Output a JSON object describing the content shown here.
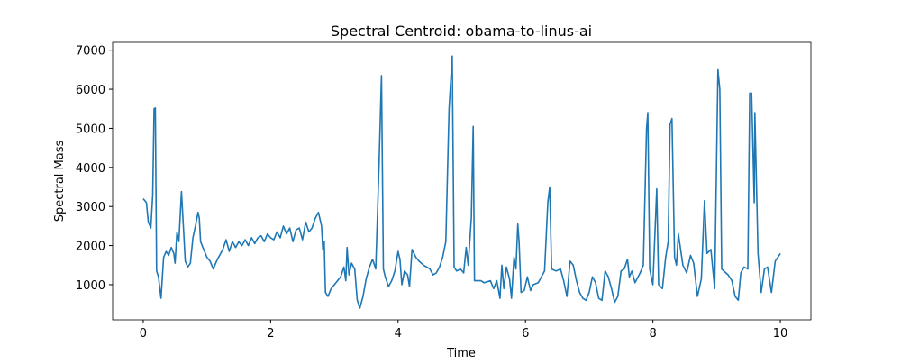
{
  "chart_data": {
    "type": "line",
    "title": "Spectral Centroid: obama-to-linus-ai",
    "xlabel": "Time",
    "ylabel": "Spectral Mass",
    "color": "#1f77b4",
    "xlim": [
      -0.48,
      10.48
    ],
    "ylim": [
      100,
      7200
    ],
    "xticks": [
      0,
      2,
      4,
      6,
      8,
      10
    ],
    "yticks": [
      1000,
      2000,
      3000,
      4000,
      5000,
      6000,
      7000
    ],
    "x": [
      0,
      0.05,
      0.08,
      0.12,
      0.15,
      0.17,
      0.19,
      0.21,
      0.24,
      0.28,
      0.32,
      0.36,
      0.4,
      0.44,
      0.48,
      0.5,
      0.53,
      0.56,
      0.6,
      0.63,
      0.66,
      0.7,
      0.74,
      0.78,
      0.82,
      0.86,
      0.88,
      0.9,
      0.95,
      1.0,
      1.05,
      1.1,
      1.15,
      1.2,
      1.25,
      1.3,
      1.35,
      1.4,
      1.45,
      1.5,
      1.55,
      1.6,
      1.65,
      1.7,
      1.75,
      1.8,
      1.85,
      1.9,
      1.95,
      2.0,
      2.05,
      2.1,
      2.15,
      2.2,
      2.25,
      2.3,
      2.35,
      2.4,
      2.45,
      2.5,
      2.55,
      2.6,
      2.65,
      2.7,
      2.75,
      2.8,
      2.82,
      2.84,
      2.86,
      2.9,
      2.95,
      3.0,
      3.05,
      3.1,
      3.15,
      3.18,
      3.2,
      3.23,
      3.27,
      3.32,
      3.36,
      3.4,
      3.45,
      3.5,
      3.55,
      3.6,
      3.65,
      3.7,
      3.74,
      3.77,
      3.8,
      3.85,
      3.9,
      3.95,
      4.0,
      4.03,
      4.06,
      4.1,
      4.15,
      4.18,
      4.22,
      4.28,
      4.33,
      4.4,
      4.5,
      4.55,
      4.6,
      4.65,
      4.7,
      4.75,
      4.8,
      4.85,
      4.88,
      4.92,
      4.98,
      5.03,
      5.07,
      5.1,
      5.15,
      5.18,
      5.2,
      5.3,
      5.35,
      5.45,
      5.5,
      5.55,
      5.6,
      5.63,
      5.66,
      5.7,
      5.75,
      5.78,
      5.82,
      5.85,
      5.88,
      5.9,
      5.93,
      5.98,
      6.03,
      6.08,
      6.12,
      6.2,
      6.25,
      6.3,
      6.35,
      6.38,
      6.41,
      6.48,
      6.55,
      6.6,
      6.65,
      6.7,
      6.75,
      6.8,
      6.85,
      6.9,
      6.95,
      7.0,
      7.05,
      7.1,
      7.15,
      7.2,
      7.25,
      7.3,
      7.35,
      7.4,
      7.45,
      7.5,
      7.55,
      7.6,
      7.63,
      7.67,
      7.72,
      7.8,
      7.85,
      7.9,
      7.92,
      7.95,
      8.0,
      8.06,
      8.09,
      8.15,
      8.2,
      8.24,
      8.27,
      8.3,
      8.34,
      8.37,
      8.4,
      8.47,
      8.53,
      8.59,
      8.64,
      8.7,
      8.76,
      8.81,
      8.85,
      8.91,
      8.97,
      9.02,
      9.05,
      9.08,
      9.18,
      9.24,
      9.29,
      9.34,
      9.38,
      9.43,
      9.49,
      9.52,
      9.55,
      9.59,
      9.6,
      9.65,
      9.7,
      9.75,
      9.8,
      9.86,
      9.92,
      10
    ],
    "values": [
      3200,
      3100,
      2600,
      2450,
      3300,
      5500,
      5520,
      1350,
      1200,
      650,
      1700,
      1850,
      1750,
      1950,
      1800,
      1550,
      2350,
      2100,
      3380,
      2500,
      1600,
      1450,
      1550,
      2200,
      2500,
      2850,
      2700,
      2100,
      1900,
      1700,
      1600,
      1400,
      1600,
      1750,
      1900,
      2150,
      1850,
      2100,
      1950,
      2100,
      2000,
      2150,
      2000,
      2200,
      2050,
      2200,
      2250,
      2100,
      2300,
      2200,
      2150,
      2350,
      2200,
      2500,
      2300,
      2450,
      2100,
      2400,
      2450,
      2150,
      2600,
      2350,
      2450,
      2700,
      2850,
      2500,
      1900,
      2100,
      800,
      700,
      900,
      1000,
      1100,
      1200,
      1450,
      1100,
      1950,
      1250,
      1550,
      1400,
      600,
      400,
      700,
      1150,
      1450,
      1650,
      1400,
      4000,
      6350,
      1400,
      1200,
      950,
      1100,
      1350,
      1850,
      1650,
      1000,
      1350,
      1250,
      950,
      1900,
      1700,
      1600,
      1500,
      1400,
      1250,
      1300,
      1450,
      1700,
      2100,
      5500,
      6850,
      1450,
      1350,
      1400,
      1300,
      1950,
      1500,
      2700,
      5050,
      1100,
      1100,
      1050,
      1100,
      900,
      1100,
      650,
      1500,
      900,
      1450,
      1150,
      650,
      1700,
      1400,
      2550,
      2100,
      800,
      850,
      1200,
      850,
      1000,
      1050,
      1200,
      1350,
      3100,
      3500,
      1400,
      1350,
      1400,
      1100,
      700,
      1600,
      1500,
      1100,
      800,
      650,
      600,
      800,
      1200,
      1050,
      650,
      600,
      1350,
      1200,
      900,
      550,
      700,
      1350,
      1400,
      1650,
      1200,
      1350,
      1050,
      1300,
      1500,
      5000,
      5400,
      1400,
      1000,
      3450,
      1000,
      900,
      1700,
      2100,
      5100,
      5250,
      1700,
      1500,
      2300,
      1500,
      1300,
      1750,
      1550,
      700,
      1150,
      3150,
      1800,
      1900,
      900,
      6500,
      6000,
      1400,
      1250,
      1100,
      700,
      600,
      1300,
      1450,
      1400,
      5900,
      5900,
      3100,
      5400,
      1800,
      800,
      1400,
      1450,
      800,
      1600,
      1800
    ]
  }
}
